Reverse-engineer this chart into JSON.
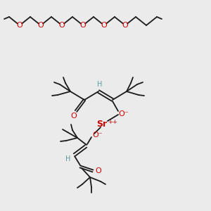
{
  "bg_color": "#ebebeb",
  "line_color": "#1a1a1a",
  "o_color": "#cc0000",
  "sr_color": "#cc0000",
  "h_color": "#5a9a9a",
  "figsize": [
    3.0,
    3.0
  ],
  "dpi": 100,
  "top_chain": {
    "y": 30,
    "nodes": [
      15,
      35,
      55,
      75,
      95,
      115,
      135,
      155,
      175,
      195,
      215,
      235,
      255,
      275,
      290
    ],
    "o_positions": [
      1,
      4,
      7,
      10,
      13
    ]
  }
}
